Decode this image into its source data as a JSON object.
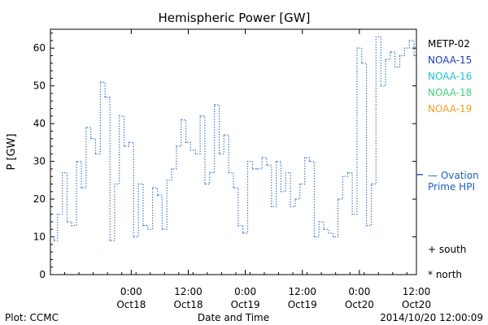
{
  "chart_data": {
    "type": "line",
    "title": "Hemispheric Power [GW]",
    "ylabel": "P [GW]",
    "xlabel": "Date and Time",
    "ylim": [
      0,
      65
    ],
    "xlim": [
      "2014-10-17 07:00",
      "2014-10-20 12:00"
    ],
    "yticks": [
      0,
      10,
      20,
      30,
      40,
      50,
      60
    ],
    "xticks": [
      {
        "x": "2014-10-18 00:00",
        "time": "0:00",
        "date": "Oct18"
      },
      {
        "x": "2014-10-18 12:00",
        "time": "12:00",
        "date": "Oct18"
      },
      {
        "x": "2014-10-19 00:00",
        "time": "0:00",
        "date": "Oct19"
      },
      {
        "x": "2014-10-19 12:00",
        "time": "12:00",
        "date": "Oct19"
      },
      {
        "x": "2014-10-20 00:00",
        "time": "0:00",
        "date": "Oct20"
      },
      {
        "x": "2014-10-20 12:00",
        "time": "12:00",
        "date": "Oct20"
      }
    ],
    "legend": {
      "satellites": [
        {
          "name": "METP-02",
          "color": "#000000"
        },
        {
          "name": "NOAA-15",
          "color": "#1f3fb0"
        },
        {
          "name": "NOAA-16",
          "color": "#22c0d8"
        },
        {
          "name": "NOAA-18",
          "color": "#3cd27a"
        },
        {
          "name": "NOAA-19",
          "color": "#f0a020"
        }
      ],
      "model": {
        "line1": "— Ovation",
        "line2": "Prime HPI",
        "color": "#1f5fc0"
      },
      "markers": [
        {
          "symbol": "+",
          "label": "south"
        },
        {
          "symbol": "*",
          "label": "north"
        }
      ]
    },
    "ovation_level": 26.5,
    "series": [
      {
        "color": "#1f5fc0",
        "style": "dotted-step",
        "x": [
          "2014-10-17 07:00",
          "2014-10-17 07:45",
          "2014-10-17 08:30",
          "2014-10-17 09:30",
          "2014-10-17 10:30",
          "2014-10-17 11:30",
          "2014-10-17 12:30",
          "2014-10-17 13:30",
          "2014-10-17 14:30",
          "2014-10-17 15:30",
          "2014-10-17 16:30",
          "2014-10-17 17:30",
          "2014-10-17 18:30",
          "2014-10-17 19:30",
          "2014-10-17 20:30",
          "2014-10-17 21:30",
          "2014-10-17 22:30",
          "2014-10-17 23:30",
          "2014-10-18 00:30",
          "2014-10-18 01:30",
          "2014-10-18 02:30",
          "2014-10-18 03:30",
          "2014-10-18 04:30",
          "2014-10-18 05:30",
          "2014-10-18 06:30",
          "2014-10-18 07:30",
          "2014-10-18 08:30",
          "2014-10-18 09:30",
          "2014-10-18 10:30",
          "2014-10-18 11:30",
          "2014-10-18 12:30",
          "2014-10-18 13:30",
          "2014-10-18 14:30",
          "2014-10-18 15:30",
          "2014-10-18 16:30",
          "2014-10-18 17:30",
          "2014-10-18 18:30",
          "2014-10-18 19:30",
          "2014-10-18 20:30",
          "2014-10-18 21:30",
          "2014-10-18 22:30",
          "2014-10-18 23:30",
          "2014-10-19 00:30",
          "2014-10-19 01:30",
          "2014-10-19 02:30",
          "2014-10-19 03:30",
          "2014-10-19 04:30",
          "2014-10-19 05:30",
          "2014-10-19 06:30",
          "2014-10-19 07:30",
          "2014-10-19 08:30",
          "2014-10-19 09:30",
          "2014-10-19 10:30",
          "2014-10-19 11:30",
          "2014-10-19 12:30",
          "2014-10-19 13:30",
          "2014-10-19 14:30",
          "2014-10-19 15:30",
          "2014-10-19 16:30",
          "2014-10-19 17:30",
          "2014-10-19 18:30",
          "2014-10-19 19:30",
          "2014-10-19 20:30",
          "2014-10-19 21:30",
          "2014-10-19 22:30",
          "2014-10-19 23:30",
          "2014-10-20 00:30",
          "2014-10-20 01:30",
          "2014-10-20 02:30",
          "2014-10-20 03:30",
          "2014-10-20 04:30",
          "2014-10-20 05:30",
          "2014-10-20 06:30",
          "2014-10-20 07:30",
          "2014-10-20 08:30",
          "2014-10-20 09:30",
          "2014-10-20 10:30",
          "2014-10-20 11:30"
        ],
        "y": [
          10,
          9,
          16,
          27,
          14,
          13,
          30,
          23,
          39,
          36,
          32,
          51,
          47,
          9,
          24,
          42,
          34,
          35,
          10,
          24,
          13,
          12,
          23,
          21,
          12,
          25,
          28,
          34,
          41,
          35,
          33,
          32,
          42,
          24,
          27,
          45,
          32,
          37,
          27,
          23,
          13,
          11,
          30,
          28,
          28,
          31,
          29,
          18,
          30,
          22,
          27,
          18,
          20,
          24,
          31,
          30,
          10,
          14,
          12,
          11,
          10,
          20,
          26,
          27,
          16,
          60,
          56,
          13,
          24,
          63,
          50,
          57,
          59,
          55,
          58,
          60,
          62,
          58
        ]
      }
    ]
  },
  "footer": {
    "left": "Plot: CCMC",
    "right": "2014/10/20 12:00:09"
  }
}
